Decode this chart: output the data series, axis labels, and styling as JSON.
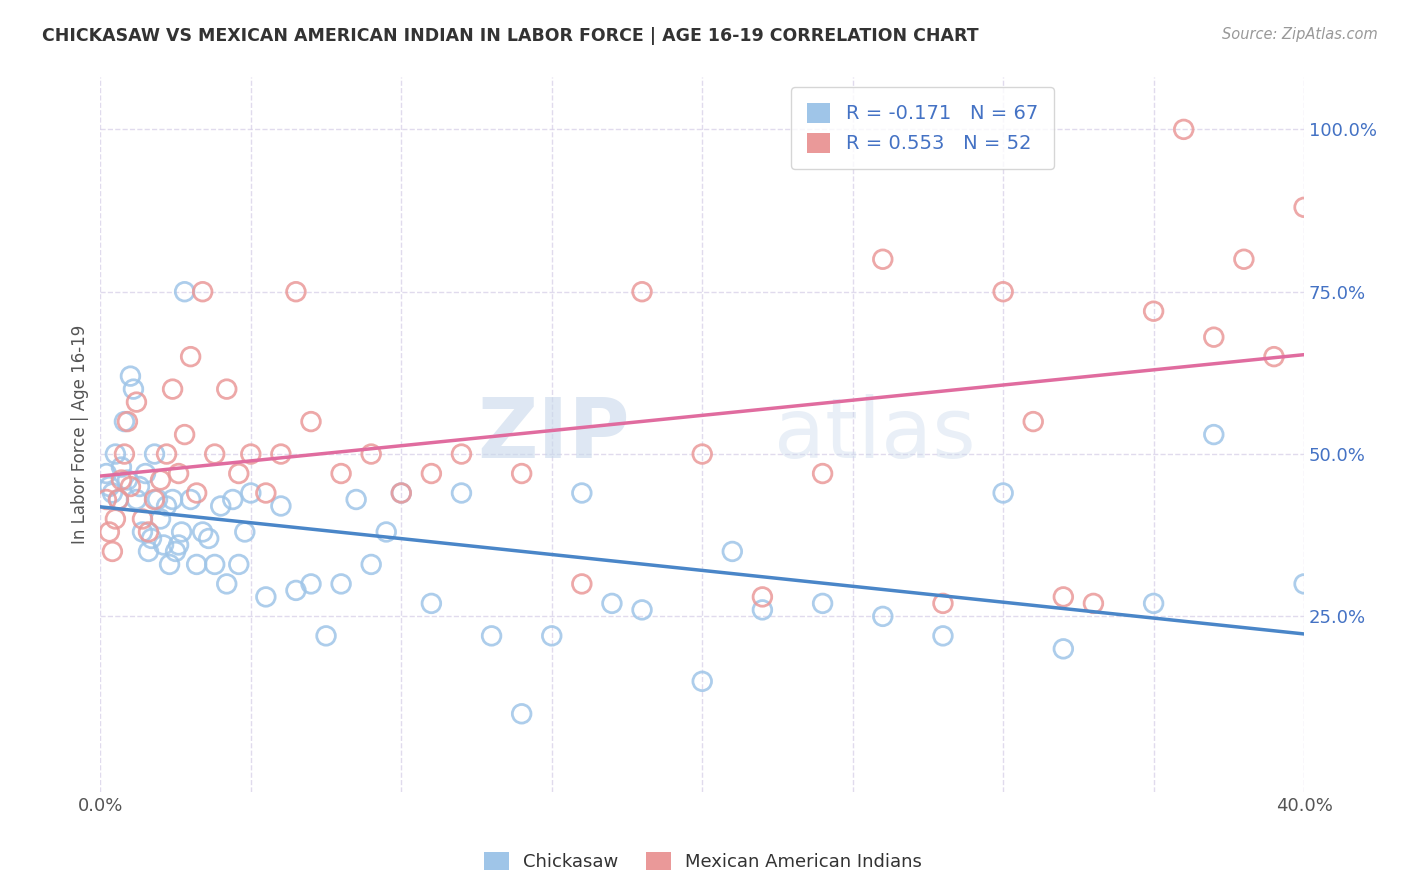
{
  "title": "CHICKASAW VS MEXICAN AMERICAN INDIAN IN LABOR FORCE | AGE 16-19 CORRELATION CHART",
  "source": "Source: ZipAtlas.com",
  "ylabel": "In Labor Force | Age 16-19",
  "xlim": [
    0.0,
    0.4
  ],
  "ylim": [
    -0.02,
    1.08
  ],
  "ytick_values": [
    0.25,
    0.5,
    0.75,
    1.0
  ],
  "xtick_values": [
    0.0,
    0.05,
    0.1,
    0.15,
    0.2,
    0.25,
    0.3,
    0.35,
    0.4
  ],
  "blue_color": "#9fc5e8",
  "pink_color": "#ea9999",
  "blue_line_color": "#4a86c8",
  "pink_line_color": "#e06c9f",
  "legend_text_color": "#4472c4",
  "r_blue": -0.171,
  "n_blue": 67,
  "r_pink": 0.553,
  "n_pink": 52,
  "chickasaw_x": [
    0.002,
    0.003,
    0.004,
    0.005,
    0.006,
    0.007,
    0.008,
    0.009,
    0.01,
    0.011,
    0.012,
    0.013,
    0.014,
    0.015,
    0.016,
    0.017,
    0.018,
    0.019,
    0.02,
    0.021,
    0.022,
    0.023,
    0.024,
    0.025,
    0.026,
    0.027,
    0.028,
    0.03,
    0.032,
    0.034,
    0.036,
    0.038,
    0.04,
    0.042,
    0.044,
    0.046,
    0.048,
    0.05,
    0.055,
    0.06,
    0.065,
    0.07,
    0.075,
    0.08,
    0.085,
    0.09,
    0.095,
    0.1,
    0.11,
    0.12,
    0.13,
    0.14,
    0.15,
    0.16,
    0.17,
    0.18,
    0.2,
    0.21,
    0.22,
    0.24,
    0.26,
    0.28,
    0.3,
    0.32,
    0.35,
    0.37,
    0.4
  ],
  "chickasaw_y": [
    0.47,
    0.45,
    0.44,
    0.5,
    0.43,
    0.48,
    0.55,
    0.46,
    0.62,
    0.6,
    0.43,
    0.45,
    0.38,
    0.47,
    0.35,
    0.37,
    0.5,
    0.43,
    0.4,
    0.36,
    0.42,
    0.33,
    0.43,
    0.35,
    0.36,
    0.38,
    0.75,
    0.43,
    0.33,
    0.38,
    0.37,
    0.33,
    0.42,
    0.3,
    0.43,
    0.33,
    0.38,
    0.44,
    0.28,
    0.42,
    0.29,
    0.3,
    0.22,
    0.3,
    0.43,
    0.33,
    0.38,
    0.44,
    0.27,
    0.44,
    0.22,
    0.1,
    0.22,
    0.44,
    0.27,
    0.26,
    0.15,
    0.35,
    0.26,
    0.27,
    0.25,
    0.22,
    0.44,
    0.2,
    0.27,
    0.53,
    0.3
  ],
  "mexican_x": [
    0.002,
    0.003,
    0.004,
    0.005,
    0.006,
    0.007,
    0.008,
    0.009,
    0.01,
    0.012,
    0.014,
    0.016,
    0.018,
    0.02,
    0.022,
    0.024,
    0.026,
    0.028,
    0.03,
    0.032,
    0.034,
    0.038,
    0.042,
    0.046,
    0.05,
    0.055,
    0.06,
    0.065,
    0.07,
    0.08,
    0.09,
    0.1,
    0.11,
    0.12,
    0.14,
    0.16,
    0.18,
    0.2,
    0.22,
    0.24,
    0.26,
    0.28,
    0.3,
    0.31,
    0.32,
    0.33,
    0.35,
    0.36,
    0.37,
    0.38,
    0.39,
    0.4
  ],
  "mexican_y": [
    0.43,
    0.38,
    0.35,
    0.4,
    0.43,
    0.46,
    0.5,
    0.55,
    0.45,
    0.58,
    0.4,
    0.38,
    0.43,
    0.46,
    0.5,
    0.6,
    0.47,
    0.53,
    0.65,
    0.44,
    0.75,
    0.5,
    0.6,
    0.47,
    0.5,
    0.44,
    0.5,
    0.75,
    0.55,
    0.47,
    0.5,
    0.44,
    0.47,
    0.5,
    0.47,
    0.3,
    0.75,
    0.5,
    0.28,
    0.47,
    0.8,
    0.27,
    0.75,
    0.55,
    0.28,
    0.27,
    0.72,
    1.0,
    0.68,
    0.8,
    0.65,
    0.88
  ],
  "watermark_zip": "ZIP",
  "watermark_atlas": "atlas",
  "background_color": "#ffffff",
  "grid_color": "#d9d2e9"
}
